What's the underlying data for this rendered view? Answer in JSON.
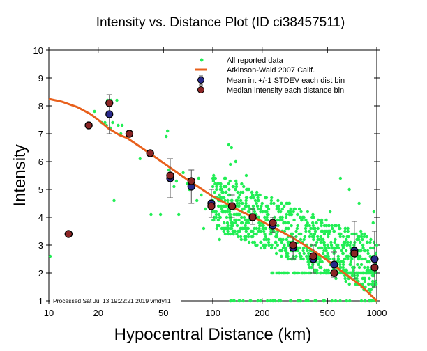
{
  "colors": {
    "all_data": "#22ee55",
    "model_line": "#e8601c",
    "mean_marker": "#2a2a8c",
    "median_marker": "#8b2525",
    "errorbar": "#555555",
    "axis": "#000000"
  },
  "chart_data": {
    "type": "scatter",
    "title": "Intensity vs. Distance Plot (ID ci38457511)",
    "xlabel": "Hypocentral Distance (km)",
    "ylabel": "Intensity",
    "xscale": "log",
    "xlim": [
      10,
      1000
    ],
    "ylim": [
      1,
      10
    ],
    "xticks": [
      10,
      20,
      50,
      100,
      200,
      500,
      1000
    ],
    "xtick_labels": [
      "10",
      "20",
      "50",
      "100",
      "200",
      "500",
      "1000"
    ],
    "yticks": [
      1,
      2,
      3,
      4,
      5,
      6,
      7,
      8,
      9,
      10
    ],
    "ytick_labels": [
      "1",
      "2",
      "3",
      "4",
      "5",
      "6",
      "7",
      "8",
      "9",
      "10"
    ],
    "grid": false,
    "legend_position": "top-right",
    "legend": [
      {
        "label": "All reported data",
        "symbol": "dot"
      },
      {
        "label": "Atkinson-Wald 2007 Calif.",
        "symbol": "line"
      },
      {
        "label": "Mean int +/-1 STDEV each dist bin",
        "symbol": "mean-errorbar"
      },
      {
        "label": "Median intensity each distance bin",
        "symbol": "median-dot"
      }
    ],
    "annotation": "Processed Sat Jul 13 19:22:21 2019 vmdyfi1",
    "model_curve": {
      "name": "Atkinson-Wald 2007 Calif.",
      "x": [
        10,
        12,
        15,
        18,
        20,
        23,
        27,
        30,
        40,
        50,
        70,
        100,
        150,
        200,
        300,
        400,
        500,
        600,
        700,
        800,
        1000
      ],
      "y": [
        8.25,
        8.15,
        7.95,
        7.7,
        7.5,
        7.2,
        6.95,
        6.85,
        6.35,
        5.95,
        5.35,
        4.75,
        4.2,
        3.85,
        3.3,
        2.85,
        2.45,
        2.1,
        1.8,
        1.55,
        1.0
      ]
    },
    "bins": [
      {
        "distance": 13.2,
        "mean": 3.4,
        "median": 3.4,
        "std_low": null,
        "std_high": null
      },
      {
        "distance": 17.5,
        "mean": 7.3,
        "median": 7.3,
        "std_low": null,
        "std_high": null
      },
      {
        "distance": 23.4,
        "mean": 7.7,
        "median": 8.1,
        "std_low": 7.0,
        "std_high": 8.4
      },
      {
        "distance": 31,
        "mean": 7.0,
        "median": 7.0,
        "std_low": null,
        "std_high": null
      },
      {
        "distance": 41.5,
        "mean": 6.3,
        "median": 6.3,
        "std_low": null,
        "std_high": null
      },
      {
        "distance": 55,
        "mean": 5.4,
        "median": 5.5,
        "std_low": 4.7,
        "std_high": 6.1
      },
      {
        "distance": 74,
        "mean": 5.1,
        "median": 5.3,
        "std_low": 4.5,
        "std_high": 5.7
      },
      {
        "distance": 98,
        "mean": 4.5,
        "median": 4.4,
        "std_low": 4.0,
        "std_high": 5.0
      },
      {
        "distance": 131,
        "mean": 4.4,
        "median": 4.4,
        "std_low": 4.0,
        "std_high": 4.8
      },
      {
        "distance": 175,
        "mean": 4.0,
        "median": 4.0,
        "std_low": 3.75,
        "std_high": 4.3
      },
      {
        "distance": 232,
        "mean": 3.7,
        "median": 3.8,
        "std_low": 3.45,
        "std_high": 4.0
      },
      {
        "distance": 309,
        "mean": 2.9,
        "median": 3.0,
        "std_low": 2.5,
        "std_high": 3.3
      },
      {
        "distance": 410,
        "mean": 2.5,
        "median": 2.6,
        "std_low": 2.0,
        "std_high": 3.0
      },
      {
        "distance": 550,
        "mean": 2.3,
        "median": 2.0,
        "std_low": 1.85,
        "std_high": 2.75
      },
      {
        "distance": 730,
        "mean": 2.8,
        "median": 2.7,
        "std_low": 1.8,
        "std_high": 3.85
      },
      {
        "distance": 970,
        "mean": 2.5,
        "median": 2.2,
        "std_low": 1.5,
        "std_high": 3.5
      }
    ],
    "all_reported_data": {
      "x": [
        10.2,
        19,
        21,
        22.5,
        22.8,
        24,
        24.5,
        26.5,
        26,
        27.5,
        28,
        22,
        23.8,
        25,
        36,
        42,
        48,
        52,
        53,
        54,
        58,
        60,
        66,
        62,
        70,
        72,
        80,
        82,
        85,
        88,
        90,
        95,
        100,
        105,
        110,
        112,
        118,
        120,
        125,
        128,
        130,
        135,
        140,
        145,
        150,
        155,
        160,
        165,
        170,
        180,
        185,
        190,
        200,
        210,
        220,
        230,
        240,
        250,
        260,
        280,
        300,
        320,
        340,
        360,
        380,
        400,
        420,
        450,
        480,
        500,
        550,
        600,
        650,
        700,
        750,
        800,
        850,
        900,
        950,
        1000,
        125,
        130,
        128,
        138,
        150,
        160,
        175,
        190,
        200,
        215,
        240,
        300,
        330,
        420,
        480,
        520,
        600,
        680,
        780,
        850,
        960
      ],
      "y": [
        2.6,
        7.8,
        7.4,
        7.3,
        8.2,
        8.2,
        7.4,
        7.3,
        8.2,
        7.0,
        7.3,
        7.4,
        7.2,
        4.6,
        6.1,
        4.1,
        4.1,
        6.9,
        7.1,
        5.7,
        5.1,
        5.3,
        5.6,
        4.1,
        5.2,
        5.0,
        4.6,
        5.4,
        4.8,
        3.6,
        4.3,
        4.5,
        4.2,
        4.1,
        3.2,
        4.6,
        3.6,
        4.4,
        4.8,
        4.3,
        3.8,
        4.1,
        3.4,
        4.5,
        4.2,
        3.6,
        3.8,
        3.3,
        4.0,
        3.1,
        3.6,
        3.5,
        3.7,
        3.3,
        3.0,
        3.5,
        2.9,
        3.7,
        3.2,
        2.8,
        3.1,
        3.0,
        2.6,
        2.7,
        2.5,
        2.8,
        2.4,
        2.2,
        3.0,
        2.5,
        2.3,
        2.0,
        2.1,
        2.6,
        2.0,
        3.5,
        2.5,
        1.0,
        3.8,
        3.0,
        6.6,
        6.5,
        5.9,
        6.0,
        5.2,
        5.5,
        4.8,
        4.6,
        4.5,
        1.0,
        1.0,
        1.0,
        1.0,
        1.0,
        1.0,
        4.2,
        5.4,
        5.0,
        4.5,
        1.0,
        4.2
      ]
    }
  }
}
